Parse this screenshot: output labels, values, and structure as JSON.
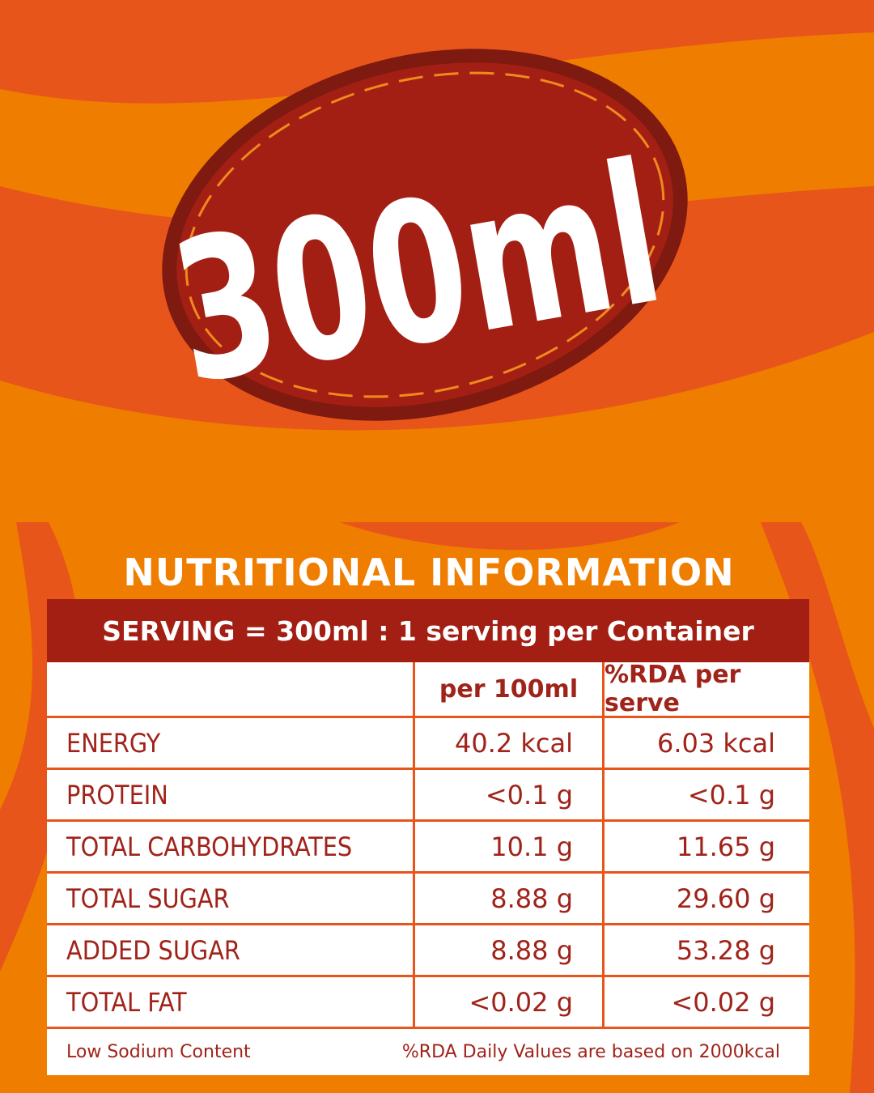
{
  "badge": {
    "text": "300ml"
  },
  "title": "NUTRITIONAL INFORMATION",
  "serving": "SERVING = 300ml : 1 serving per Container",
  "table": {
    "header": [
      "per 100ml",
      "%RDA per serve"
    ],
    "rows": [
      [
        "ENERGY",
        "40.2 kcal",
        "6.03 kcal"
      ],
      [
        "PROTEIN",
        "<0.1 g",
        "<0.1 g"
      ],
      [
        "TOTAL CARBOHYDRATES",
        "10.1 g",
        "11.65 g"
      ],
      [
        "TOTAL SUGAR",
        "8.88 g",
        "29.60 g"
      ],
      [
        "ADDED SUGAR",
        "8.88 g",
        "53.28 g"
      ],
      [
        "TOTAL FAT",
        "<0.02 g",
        "<0.02 g"
      ]
    ]
  },
  "footer": {
    "left": "Low Sodium Content",
    "right": "%RDA Daily Values are based on 2000kcal"
  }
}
